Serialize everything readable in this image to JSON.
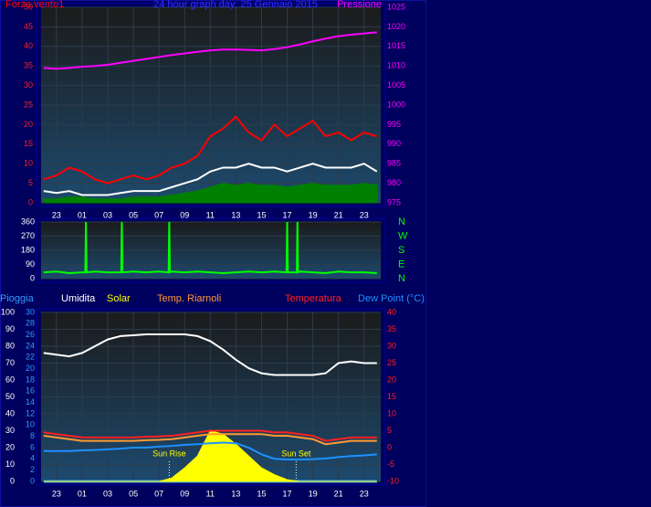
{
  "chart_data": [
    {
      "type": "line",
      "title": "24 hour graph day:  25 Gennaio 2015",
      "grid": true,
      "x": [
        22,
        23,
        24,
        25,
        26,
        27,
        28,
        29,
        30,
        31,
        32,
        33,
        34,
        35,
        36,
        37,
        38,
        39,
        40,
        41,
        42,
        43,
        44,
        45,
        46,
        47,
        48
      ],
      "xlim": [
        21.8,
        48.3
      ],
      "xticks": [
        23,
        {
          "value": 25,
          "label": "01"
        },
        {
          "value": 27,
          "label": "03"
        },
        {
          "value": 29,
          "label": "05"
        },
        {
          "value": 31,
          "label": "07"
        },
        {
          "value": 33,
          "label": "09"
        },
        {
          "value": 35,
          "label": "11"
        },
        {
          "value": 37,
          "label": "13"
        },
        {
          "value": 39,
          "label": "15"
        },
        {
          "value": 41,
          "label": "17"
        },
        {
          "value": 43,
          "label": "19"
        },
        {
          "value": 45,
          "label": "21"
        },
        {
          "value": 47,
          "label": "23"
        }
      ],
      "ylim": [
        0,
        50
      ],
      "yticks": [
        0,
        5,
        10,
        15,
        20,
        25,
        30,
        35,
        40,
        45,
        50
      ],
      "y2lim": [
        975,
        1025
      ],
      "y2ticks": [
        975,
        980,
        985,
        990,
        995,
        1000,
        1005,
        1010,
        1015,
        1020,
        1025
      ],
      "series": [
        {
          "name": "Pressione",
          "color": "#ff00ff",
          "axis": "y2",
          "values": [
            1009.5,
            1009.3,
            1009.5,
            1009.8,
            1010,
            1010.3,
            1010.8,
            1011.3,
            1011.8,
            1012.3,
            1012.8,
            1013.2,
            1013.6,
            1014,
            1014.2,
            1014.2,
            1014.1,
            1014,
            1014.3,
            1014.8,
            1015.5,
            1016.3,
            1017,
            1017.6,
            1018,
            1018.3,
            1018.6
          ]
        },
        {
          "color": "#008000",
          "style": "area",
          "values": [
            1,
            1,
            1.5,
            1.5,
            1,
            1,
            1,
            1.5,
            1.5,
            1.5,
            2,
            2.5,
            3,
            4,
            5,
            4.5,
            5,
            4.5,
            4.5,
            4,
            4.5,
            5,
            4.5,
            4.5,
            4.5,
            5,
            4.5
          ]
        },
        {
          "name": "Forza vento1",
          "color": "#ff0000",
          "values": [
            6,
            7,
            9,
            8,
            6,
            5,
            6,
            7,
            6,
            7,
            9,
            10,
            12,
            17,
            19,
            22,
            18,
            16,
            20,
            17,
            19,
            21,
            17,
            18,
            16,
            18,
            17
          ]
        },
        {
          "color": "#ffffff",
          "values": [
            3,
            2.5,
            3,
            2,
            2,
            2,
            2.5,
            3,
            3,
            3,
            4,
            5,
            6,
            8,
            9,
            9,
            10,
            9,
            9,
            8,
            9,
            10,
            9,
            9,
            9,
            10,
            8
          ]
        }
      ]
    },
    {
      "type": "line",
      "grid": true,
      "x": [
        22,
        23,
        24,
        25,
        25.25,
        25.3,
        25.35,
        26,
        27,
        28,
        28.05,
        28.1,
        28.15,
        29,
        30,
        31,
        31.75,
        31.8,
        31.85,
        32,
        33,
        34,
        35,
        36,
        37,
        38,
        39,
        40,
        40.95,
        41,
        41.05,
        41.5,
        41.75,
        41.8,
        41.85,
        42,
        43,
        44,
        45,
        46,
        47,
        48
      ],
      "xlim": [
        21.8,
        48.3
      ],
      "ylim": [
        0,
        360
      ],
      "yticks": [
        0,
        90,
        180,
        270,
        360
      ],
      "y2lim": [
        0,
        360
      ],
      "y2ticks": [
        {
          "value": 360,
          "label": "N"
        },
        {
          "value": 270,
          "label": "W"
        },
        {
          "value": 180,
          "label": "S"
        },
        {
          "value": 90,
          "label": "E"
        },
        {
          "value": 0,
          "label": "N"
        }
      ],
      "series": [
        {
          "color": "#00ff00",
          "values": [
            40,
            45,
            35,
            40,
            40,
            360,
            40,
            45,
            40,
            40,
            40,
            360,
            40,
            45,
            40,
            45,
            40,
            360,
            40,
            45,
            40,
            45,
            40,
            35,
            40,
            45,
            40,
            45,
            40,
            360,
            40,
            40,
            40,
            360,
            40,
            45,
            40,
            35,
            45,
            40,
            40,
            35
          ]
        }
      ]
    },
    {
      "type": "line",
      "grid": true,
      "x": [
        22,
        23,
        24,
        25,
        26,
        27,
        28,
        29,
        30,
        31,
        32,
        33,
        34,
        35,
        36,
        37,
        38,
        39,
        40,
        41,
        42,
        43,
        44,
        45,
        46,
        47,
        48
      ],
      "xlim": [
        21.8,
        48.3
      ],
      "xticks": [
        23,
        {
          "value": 25,
          "label": "01"
        },
        {
          "value": 27,
          "label": "03"
        },
        {
          "value": 29,
          "label": "05"
        },
        {
          "value": 31,
          "label": "07"
        },
        {
          "value": 33,
          "label": "09"
        },
        {
          "value": 35,
          "label": "11"
        },
        {
          "value": 37,
          "label": "13"
        },
        {
          "value": 39,
          "label": "15"
        },
        {
          "value": 41,
          "label": "17"
        },
        {
          "value": 43,
          "label": "19"
        },
        {
          "value": 45,
          "label": "21"
        },
        {
          "value": 47,
          "label": "23"
        }
      ],
      "ylim": [
        0,
        100
      ],
      "yticks": [
        0,
        10,
        20,
        30,
        40,
        50,
        60,
        70,
        80,
        90,
        100
      ],
      "y3lim": [
        0,
        30
      ],
      "y3ticks": [
        0,
        2,
        4,
        6,
        8,
        10,
        12,
        14,
        16,
        18,
        20,
        22,
        24,
        26,
        28,
        30
      ],
      "y2lim": [
        -10,
        40
      ],
      "y2ticks": [
        -10,
        -5,
        0,
        5,
        10,
        15,
        20,
        25,
        30,
        35,
        40
      ],
      "series": [
        {
          "name": "Pioggia",
          "color": "#3399ff",
          "axis": "y3",
          "values": [
            0,
            0,
            0,
            0,
            0,
            0,
            0,
            0,
            0,
            0,
            0,
            0,
            0,
            0,
            0,
            0,
            0,
            0,
            0,
            0,
            0,
            0,
            0,
            0,
            0,
            0,
            0
          ]
        },
        {
          "name": "Umidita",
          "color": "#ffffff",
          "values": [
            76,
            75,
            74,
            76,
            80,
            84,
            86,
            86.5,
            87,
            87,
            87,
            87,
            86,
            83,
            78,
            72,
            67,
            64,
            63,
            63,
            63,
            63,
            64,
            70,
            71,
            70,
            70
          ]
        },
        {
          "name": "Solar",
          "color": "#ffff00",
          "style": "area",
          "values": [
            0,
            0,
            0,
            0,
            0,
            0,
            0,
            0,
            0,
            0,
            2,
            8,
            15,
            30,
            28,
            22,
            15,
            8,
            4,
            1,
            0,
            0,
            0,
            0,
            0,
            0,
            0
          ]
        },
        {
          "name": "Temp. Riarnoli",
          "color": "#ff9933",
          "axis": "y2",
          "values": [
            3.5,
            3,
            2.5,
            2,
            2,
            2,
            2,
            2,
            2.2,
            2.3,
            2.5,
            3,
            3.5,
            4,
            4,
            4,
            4,
            4,
            3.5,
            3.5,
            3,
            2.5,
            1,
            1.5,
            2,
            2,
            2
          ]
        },
        {
          "name": "Temperatura",
          "color": "#ff2020",
          "axis": "y2",
          "values": [
            4.5,
            4,
            3.5,
            3,
            3,
            3,
            3,
            3,
            3.2,
            3.3,
            3.5,
            4,
            4.5,
            5,
            5,
            5,
            5,
            5,
            4.5,
            4.5,
            4,
            3.5,
            2,
            2.5,
            3,
            3,
            3
          ]
        },
        {
          "name": "Dew Point (°C)",
          "color": "#1e90ff",
          "axis": "y2",
          "values": [
            -1,
            -1,
            -1,
            -0.8,
            -0.7,
            -0.5,
            -0.3,
            0,
            0,
            0.3,
            0.5,
            0.8,
            1,
            1.3,
            1.5,
            1.3,
            0,
            -2,
            -3.3,
            -3.5,
            -3.5,
            -3.4,
            -3.2,
            -2.8,
            -2.5,
            -2.3,
            -2
          ]
        }
      ],
      "annotations": [
        {
          "text": "Sun Rise",
          "x": 31.8
        },
        {
          "text": "Sun Set",
          "x": 41.7
        }
      ]
    }
  ]
}
